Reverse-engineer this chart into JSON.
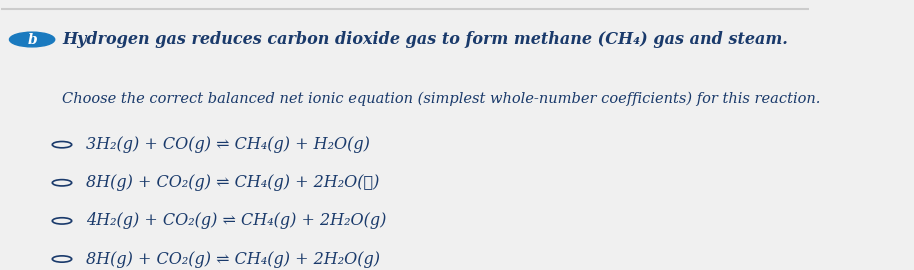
{
  "background_color": "#f0f0f0",
  "top_border_color": "#cccccc",
  "text_color": "#1a3a6b",
  "label_b_bg": "#1a7abf",
  "label_b_text": "b",
  "title_text": "Hydrogen gas reduces carbon dioxide gas to form methane (CH₄) gas and steam.",
  "subtitle_text": "Choose the correct balanced net ionic equation (simplest whole-number coefficients) for this reaction.",
  "options": [
    "3H₂(g) + CO(g) ⇌ CH₄(g) + H₂O(g)",
    "8H(g) + CO₂(g) ⇌ CH₄(g) + 2H₂O(ℓ)",
    "4H₂(g) + CO₂(g) ⇌ CH₄(g) + 2H₂O(g)",
    "8H(g) + CO₂(g) ⇌ CH₄(g) + 2H₂O(g)"
  ],
  "font_size_title": 11.5,
  "font_size_subtitle": 10.5,
  "font_size_options": 11.5
}
